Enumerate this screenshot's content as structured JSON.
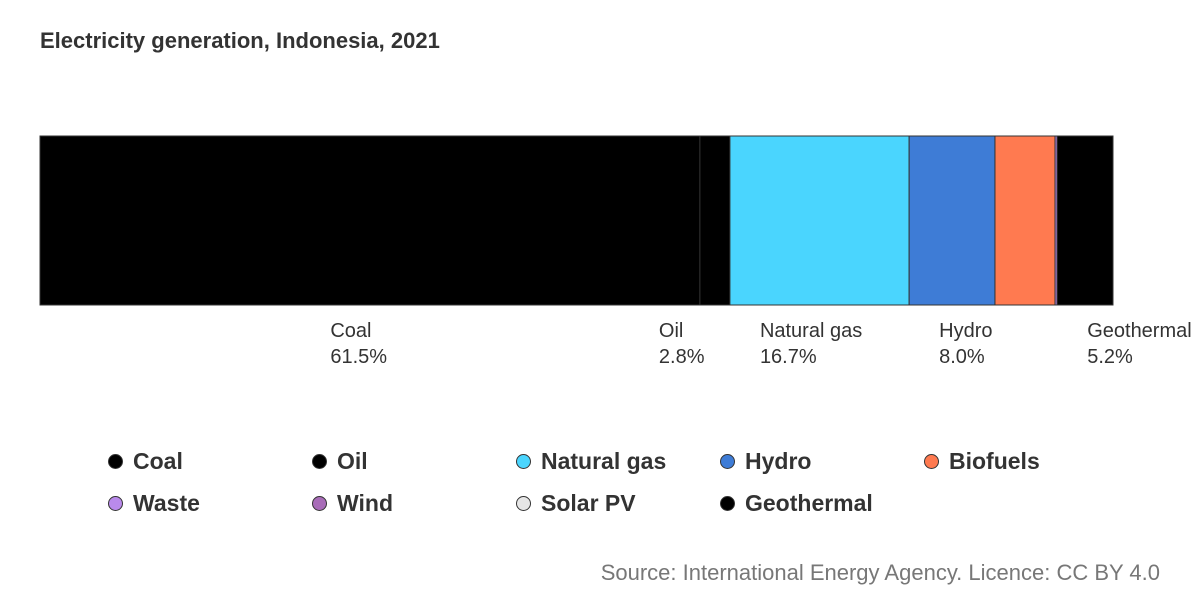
{
  "chart_data": {
    "type": "bar",
    "stacked": true,
    "orientation": "horizontal",
    "title": "Electricity generation, Indonesia, 2021",
    "categories": [
      "Indonesia, 2021"
    ],
    "unit": "%",
    "series": [
      {
        "name": "Coal",
        "values": [
          61.5
        ],
        "color": "#000000",
        "label": "61.5%"
      },
      {
        "name": "Oil",
        "values": [
          2.8
        ],
        "color": "#000000",
        "label": "2.8%"
      },
      {
        "name": "Natural gas",
        "values": [
          16.7
        ],
        "color": "#4ad5fe",
        "label": "16.7%"
      },
      {
        "name": "Hydro",
        "values": [
          8.0
        ],
        "color": "#3e7cd6",
        "label": "8.0%"
      },
      {
        "name": "Biofuels",
        "values": [
          5.6
        ],
        "color": "#ff7a50",
        "label": ""
      },
      {
        "name": "Waste",
        "values": [
          0.2
        ],
        "color": "#b98aeb",
        "label": ""
      },
      {
        "name": "Wind",
        "values": [
          0.0
        ],
        "color": "#a86cb8",
        "label": ""
      },
      {
        "name": "Solar PV",
        "values": [
          0.0
        ],
        "color": "#e6e6e6",
        "label": ""
      },
      {
        "name": "Geothermal",
        "values": [
          5.2
        ],
        "color": "#000000",
        "label": "5.2%"
      }
    ],
    "legend_position": "bottom",
    "grid": false
  },
  "source": "Source: International Energy Agency. Licence: CC BY 4.0"
}
